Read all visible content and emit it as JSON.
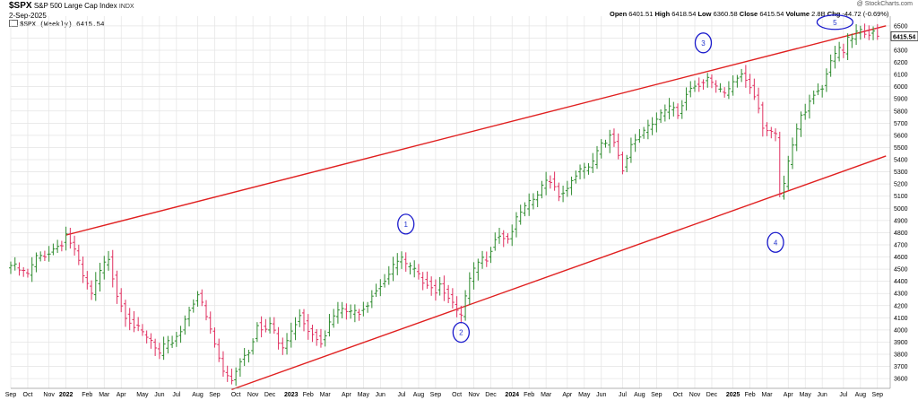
{
  "header": {
    "symbol": "$SPX",
    "name": "S&P 500 Large Cap Index",
    "exchange": "INDX",
    "date": "2-Sep-2025",
    "credit": "@ StockCharts.com",
    "ohlc": {
      "open_label": "Open",
      "open": "6401.51",
      "high_label": "High",
      "high": "6418.54",
      "low_label": "Low",
      "low": "6360.58",
      "close_label": "Close",
      "close": "6415.54",
      "volume_label": "Volume",
      "volume": "2.8B",
      "chg_label": "Chg",
      "chg": "-44.72 (-0.69%)"
    },
    "legend": "$SPX (Weekly) 6415.54"
  },
  "colors": {
    "up": "#2e8b2e",
    "down": "#e03060",
    "trend": "#e02020",
    "wave": "#1a1acc",
    "grid": "#e4e4e4"
  },
  "chart_data": {
    "type": "ohlc",
    "interval": "weekly",
    "y_axis_side": "right",
    "ylim": [
      3520,
      6580
    ],
    "y_ticks": [
      3600,
      3700,
      3800,
      3900,
      4000,
      4100,
      4200,
      4300,
      4400,
      4500,
      4600,
      4700,
      4800,
      4900,
      5000,
      5100,
      5200,
      5300,
      5400,
      5500,
      5600,
      5700,
      5800,
      5900,
      6000,
      6100,
      6200,
      6300,
      6400,
      6500
    ],
    "last_price_label": "6415.54",
    "x_ticks": [
      "Sep",
      "Oct",
      "Nov",
      "2022",
      "Feb",
      "Mar",
      "Apr",
      "May",
      "Jun",
      "Jul",
      "Aug",
      "Sep",
      "Oct",
      "Nov",
      "Dec",
      "2023",
      "Feb",
      "Mar",
      "Apr",
      "May",
      "Jun",
      "Jul",
      "Aug",
      "Sep",
      "Oct",
      "Nov",
      "Dec",
      "2024",
      "Feb",
      "Mar",
      "Apr",
      "May",
      "Jun",
      "Jul",
      "Aug",
      "Sep",
      "Oct",
      "Nov",
      "Dec",
      "2025",
      "Feb",
      "Mar",
      "Apr",
      "May",
      "Jun",
      "Jul",
      "Aug",
      "Sep"
    ],
    "x_tick_index": [
      0,
      4,
      9,
      13,
      18,
      22,
      26,
      31,
      35,
      39,
      44,
      48,
      53,
      57,
      61,
      66,
      70,
      74,
      79,
      83,
      87,
      92,
      96,
      100,
      105,
      109,
      113,
      118,
      122,
      126,
      131,
      135,
      139,
      144,
      148,
      152,
      157,
      161,
      165,
      170,
      174,
      178,
      183,
      187,
      191,
      196,
      200,
      204
    ],
    "close_anchors": [
      [
        0,
        4530
      ],
      [
        4,
        4450
      ],
      [
        6,
        4590
      ],
      [
        9,
        4640
      ],
      [
        12,
        4720
      ],
      [
        13,
        4790
      ],
      [
        15,
        4650
      ],
      [
        17,
        4430
      ],
      [
        19,
        4290
      ],
      [
        21,
        4470
      ],
      [
        23,
        4600
      ],
      [
        25,
        4300
      ],
      [
        27,
        4130
      ],
      [
        29,
        4040
      ],
      [
        31,
        3960
      ],
      [
        33,
        3900
      ],
      [
        35,
        3790
      ],
      [
        36,
        3850
      ],
      [
        38,
        3910
      ],
      [
        40,
        4000
      ],
      [
        42,
        4180
      ],
      [
        44,
        4300
      ],
      [
        46,
        4100
      ],
      [
        48,
        3880
      ],
      [
        50,
        3650
      ],
      [
        51,
        3620
      ],
      [
        52,
        3590
      ],
      [
        54,
        3760
      ],
      [
        56,
        3830
      ],
      [
        57,
        3930
      ],
      [
        58,
        4060
      ],
      [
        60,
        4000
      ],
      [
        61,
        4050
      ],
      [
        63,
        3890
      ],
      [
        64,
        3850
      ],
      [
        66,
        3970
      ],
      [
        67,
        4070
      ],
      [
        68,
        4140
      ],
      [
        70,
        4010
      ],
      [
        71,
        3980
      ],
      [
        73,
        3920
      ],
      [
        74,
        3980
      ],
      [
        76,
        4110
      ],
      [
        78,
        4170
      ],
      [
        80,
        4130
      ],
      [
        82,
        4160
      ],
      [
        84,
        4230
      ],
      [
        85,
        4300
      ],
      [
        87,
        4380
      ],
      [
        89,
        4460
      ],
      [
        91,
        4560
      ],
      [
        92,
        4580
      ],
      [
        93,
        4520
      ],
      [
        95,
        4480
      ],
      [
        96,
        4430
      ],
      [
        98,
        4400
      ],
      [
        100,
        4330
      ],
      [
        101,
        4380
      ],
      [
        103,
        4290
      ],
      [
        104,
        4210
      ],
      [
        105,
        4130
      ],
      [
        106,
        4110
      ],
      [
        107,
        4260
      ],
      [
        108,
        4400
      ],
      [
        110,
        4550
      ],
      [
        112,
        4600
      ],
      [
        114,
        4760
      ],
      [
        115,
        4790
      ],
      [
        117,
        4750
      ],
      [
        118,
        4830
      ],
      [
        120,
        4960
      ],
      [
        122,
        5030
      ],
      [
        124,
        5110
      ],
      [
        126,
        5220
      ],
      [
        127,
        5240
      ],
      [
        128,
        5180
      ],
      [
        129,
        5120
      ],
      [
        131,
        5170
      ],
      [
        133,
        5300
      ],
      [
        135,
        5310
      ],
      [
        137,
        5360
      ],
      [
        139,
        5530
      ],
      [
        140,
        5520
      ],
      [
        141,
        5610
      ],
      [
        142,
        5550
      ],
      [
        143,
        5440
      ],
      [
        144,
        5340
      ],
      [
        145,
        5420
      ],
      [
        146,
        5530
      ],
      [
        148,
        5600
      ],
      [
        150,
        5650
      ],
      [
        152,
        5730
      ],
      [
        154,
        5790
      ],
      [
        156,
        5830
      ],
      [
        157,
        5780
      ],
      [
        159,
        5960
      ],
      [
        161,
        6020
      ],
      [
        163,
        6050
      ],
      [
        164,
        6070
      ],
      [
        165,
        6020
      ],
      [
        166,
        5980
      ],
      [
        168,
        5930
      ],
      [
        169,
        5960
      ],
      [
        170,
        6040
      ],
      [
        171,
        6080
      ],
      [
        172,
        6110
      ],
      [
        173,
        6060
      ],
      [
        174,
        6010
      ],
      [
        176,
        5850
      ],
      [
        177,
        5680
      ],
      [
        178,
        5640
      ],
      [
        179,
        5620
      ],
      [
        180,
        5580
      ],
      [
        181,
        5100
      ],
      [
        182,
        5180
      ],
      [
        183,
        5360
      ],
      [
        184,
        5520
      ],
      [
        185,
        5650
      ],
      [
        186,
        5770
      ],
      [
        187,
        5800
      ],
      [
        188,
        5900
      ],
      [
        189,
        5960
      ],
      [
        190,
        5980
      ],
      [
        191,
        6010
      ],
      [
        192,
        6120
      ],
      [
        193,
        6210
      ],
      [
        194,
        6240
      ],
      [
        195,
        6300
      ],
      [
        196,
        6270
      ],
      [
        197,
        6380
      ],
      [
        198,
        6390
      ],
      [
        199,
        6440
      ],
      [
        200,
        6450
      ],
      [
        201,
        6460
      ],
      [
        202,
        6440
      ],
      [
        203,
        6480
      ],
      [
        204,
        6415
      ]
    ],
    "trendlines": [
      {
        "from": [
          13,
          4780
        ],
        "to": [
          206,
          6500
        ]
      },
      {
        "from": [
          52,
          3510
        ],
        "to": [
          206,
          5430
        ]
      }
    ],
    "wave_labels": [
      {
        "label": "1",
        "x": 93,
        "y": 4870
      },
      {
        "label": "2",
        "x": 106,
        "y": 3980
      },
      {
        "label": "3",
        "x": 163,
        "y": 6360
      },
      {
        "label": "4",
        "x": 180,
        "y": 4720
      },
      {
        "label": "5",
        "x": 194,
        "y": 6530
      }
    ]
  }
}
